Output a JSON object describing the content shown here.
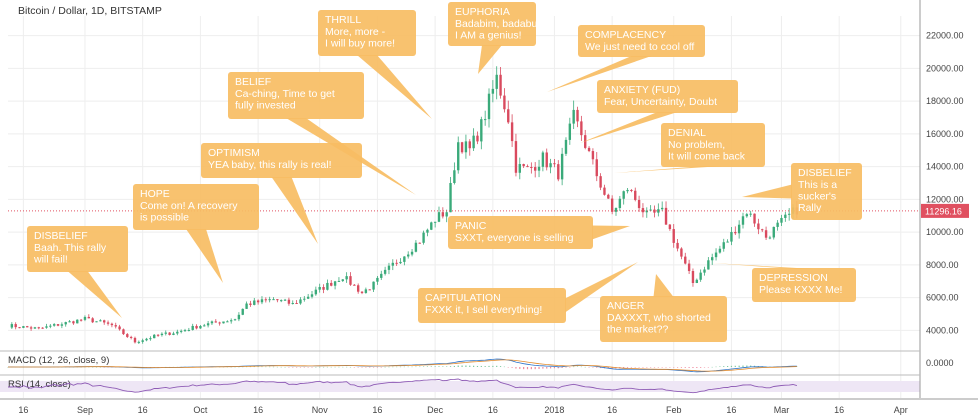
{
  "chart_data": {
    "type": "candlestick",
    "title": "Bitcoin / Dollar, 1D, BITSTAMP",
    "last_price_label": "11296.16",
    "y_ticks": [
      "22000.00",
      "20000.00",
      "18000.00",
      "16000.00",
      "14000.00",
      "12000.00",
      "10000.00",
      "8000.00",
      "6000.00",
      "4000.00"
    ],
    "y_tick_values": [
      22000,
      20000,
      18000,
      16000,
      14000,
      12000,
      10000,
      8000,
      6000,
      4000
    ],
    "ylim": [
      2800,
      23200
    ],
    "x_ticks": [
      "16",
      "Sep",
      "16",
      "Oct",
      "16",
      "Nov",
      "16",
      "Dec",
      "16",
      "2018",
      "16",
      "Feb",
      "16",
      "Mar",
      "16",
      "Apr"
    ],
    "x_tick_dates": [
      "2017-08-16",
      "2017-09-01",
      "2017-09-16",
      "2017-10-01",
      "2017-10-16",
      "2017-11-01",
      "2017-11-16",
      "2017-12-01",
      "2017-12-16",
      "2018-01-01",
      "2018-01-16",
      "2018-02-01",
      "2018-02-16",
      "2018-03-01",
      "2018-03-16",
      "2018-04-01"
    ],
    "xlim": [
      "2017-08-12",
      "2018-04-06"
    ],
    "price_path": [
      [
        "2017-08-12",
        4300
      ],
      [
        "2017-08-20",
        4100
      ],
      [
        "2017-09-01",
        4700
      ],
      [
        "2017-09-05",
        4500
      ],
      [
        "2017-09-08",
        4300
      ],
      [
        "2017-09-14",
        3300
      ],
      [
        "2017-09-20",
        3700
      ],
      [
        "2017-09-25",
        3900
      ],
      [
        "2017-10-01",
        4300
      ],
      [
        "2017-10-10",
        4700
      ],
      [
        "2017-10-13",
        5600
      ],
      [
        "2017-10-20",
        5900
      ],
      [
        "2017-10-25",
        5600
      ],
      [
        "2017-11-01",
        6500
      ],
      [
        "2017-11-07",
        7300
      ],
      [
        "2017-11-12",
        6300
      ],
      [
        "2017-11-15",
        6800
      ],
      [
        "2017-11-20",
        8000
      ],
      [
        "2017-11-27",
        9500
      ],
      [
        "2017-12-01",
        10800
      ],
      [
        "2017-12-04",
        11300
      ],
      [
        "2017-12-07",
        15500
      ],
      [
        "2017-12-10",
        15000
      ],
      [
        "2017-12-13",
        16500
      ],
      [
        "2017-12-17",
        19400
      ],
      [
        "2017-12-20",
        17000
      ],
      [
        "2017-12-22",
        14000
      ],
      [
        "2017-12-25",
        13800
      ],
      [
        "2017-12-29",
        14500
      ],
      [
        "2018-01-02",
        13600
      ],
      [
        "2018-01-06",
        17000
      ],
      [
        "2018-01-08",
        16000
      ],
      [
        "2018-01-12",
        13500
      ],
      [
        "2018-01-16",
        11200
      ],
      [
        "2018-01-20",
        12700
      ],
      [
        "2018-01-25",
        11000
      ],
      [
        "2018-01-29",
        11200
      ],
      [
        "2018-02-02",
        9000
      ],
      [
        "2018-02-06",
        6900
      ],
      [
        "2018-02-10",
        8200
      ],
      [
        "2018-02-15",
        9500
      ],
      [
        "2018-02-20",
        11300
      ],
      [
        "2018-02-25",
        9700
      ],
      [
        "2018-03-01",
        10600
      ],
      [
        "2018-03-05",
        11400
      ]
    ],
    "macd": {
      "label": "MACD (12, 26, close, 9)",
      "tick": "0.0000"
    },
    "rsi": {
      "label": "RSI (14, close)"
    },
    "callouts": [
      {
        "id": "disbelief1",
        "title": "DISBELIEF",
        "lines": [
          "Baah. This rally",
          "will fail!"
        ]
      },
      {
        "id": "hope",
        "title": "HOPE",
        "lines": [
          "Come on! A recovery",
          "is possible"
        ]
      },
      {
        "id": "optimism",
        "title": "OPTIMISM",
        "lines": [
          "YEA baby, this rally is real!"
        ]
      },
      {
        "id": "belief",
        "title": "BELIEF",
        "lines": [
          "Ca-ching, Time to get",
          "fully invested"
        ]
      },
      {
        "id": "thrill",
        "title": "THRILL",
        "lines": [
          "More, more -",
          "I will buy more!"
        ]
      },
      {
        "id": "euphoria",
        "title": "EUPHORIA",
        "lines": [
          "Badabim, badabum",
          "I AM a genius!"
        ]
      },
      {
        "id": "complacency",
        "title": "COMPLACENCY",
        "lines": [
          "We just need to cool off"
        ]
      },
      {
        "id": "anxiety",
        "title": "ANXIETY (FUD)",
        "lines": [
          "Fear, Uncertainty, Doubt"
        ]
      },
      {
        "id": "denial",
        "title": "DENIAL",
        "lines": [
          "No problem,",
          "It will come back"
        ]
      },
      {
        "id": "panic",
        "title": "PANIC",
        "lines": [
          "SXXT, everyone is selling"
        ]
      },
      {
        "id": "capitulation",
        "title": "CAPITULATION",
        "lines": [
          "FXXK it, I sell everything!"
        ]
      },
      {
        "id": "anger",
        "title": "ANGER",
        "lines": [
          "DAXXXT, who shorted",
          "the market??"
        ]
      },
      {
        "id": "depression",
        "title": "DEPRESSION",
        "lines": [
          "Please KXXX Me!"
        ]
      },
      {
        "id": "disbelief2",
        "title": "DISBELIEF",
        "lines": [
          "This is a",
          "sucker's",
          "Rally"
        ]
      }
    ],
    "colors": {
      "up": "#3aaa7a",
      "down": "#d94a5e",
      "callout": "#f7bd63",
      "price_line": "#e05060",
      "grid": "#eeeeee",
      "macd": "#2a72c8",
      "signal": "#e28a2b",
      "rsi": "#8e5bb5",
      "rsi_band": "#eee6f5"
    }
  }
}
